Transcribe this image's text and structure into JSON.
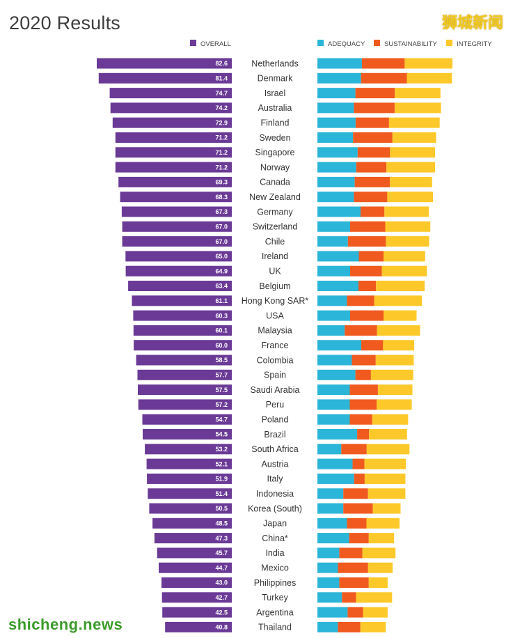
{
  "title": "2020 Results",
  "watermarks": {
    "top": "狮城新闻",
    "bottom": "shicheng.news"
  },
  "legend": {
    "overall": "OVERALL",
    "adequacy": "ADEQUACY",
    "sustainability": "SUSTAINABILITY",
    "integrity": "INTEGRITY"
  },
  "colors": {
    "overall": "#6a3a96",
    "adequacy": "#2bb5d8",
    "sustainability": "#f05a1f",
    "integrity": "#fdc92a"
  },
  "chart_data": {
    "type": "bar",
    "title": "2020 Results",
    "legend_placement": "top",
    "categories": [
      "Netherlands",
      "Denmark",
      "Israel",
      "Australia",
      "Finland",
      "Sweden",
      "Singapore",
      "Norway",
      "Canada",
      "New Zealand",
      "Germany",
      "Switzerland",
      "Chile",
      "Ireland",
      "UK",
      "Belgium",
      "Hong Kong SAR*",
      "USA",
      "Malaysia",
      "France",
      "Colombia",
      "Spain",
      "Saudi Arabia",
      "Peru",
      "Poland",
      "Brazil",
      "South Africa",
      "Austria",
      "Italy",
      "Indonesia",
      "Korea (South)",
      "Japan",
      "China*",
      "India",
      "Mexico",
      "Philippines",
      "Turkey",
      "Argentina",
      "Thailand"
    ],
    "series": [
      {
        "name": "OVERALL",
        "values": [
          82.6,
          81.4,
          74.7,
          74.2,
          72.9,
          71.2,
          71.2,
          71.2,
          69.3,
          68.3,
          67.3,
          67.0,
          67.0,
          65.0,
          64.9,
          63.4,
          61.1,
          60.3,
          60.1,
          60.0,
          58.5,
          57.7,
          57.5,
          57.2,
          54.7,
          54.5,
          53.2,
          52.1,
          51.9,
          51.4,
          50.5,
          48.5,
          47.3,
          45.7,
          44.7,
          43.0,
          42.7,
          42.5,
          40.8
        ]
      },
      {
        "name": "ADEQUACY",
        "values": [
          26.1,
          25.6,
          22.3,
          21.4,
          22.4,
          20.9,
          23.6,
          22.8,
          21.9,
          21.4,
          25.3,
          19.2,
          17.9,
          24.3,
          19.2,
          24.1,
          17.3,
          19.2,
          16.0,
          25.7,
          20.2,
          22.3,
          19.0,
          19.0,
          19.0,
          23.3,
          14.0,
          20.6,
          21.5,
          15.2,
          15.2,
          17.3,
          18.6,
          12.8,
          12.0,
          12.8,
          14.4,
          17.7,
          12.0
        ]
      },
      {
        "name": "SUSTAINABILITY",
        "values": [
          25.1,
          26.9,
          23.1,
          23.9,
          19.6,
          23.1,
          19.0,
          17.7,
          20.6,
          19.6,
          14.0,
          20.6,
          22.3,
          14.5,
          18.6,
          10.3,
          16.0,
          19.6,
          18.9,
          12.8,
          14.0,
          9.1,
          16.5,
          15.7,
          13.2,
          7.0,
          14.9,
          7.0,
          6.2,
          14.5,
          17.3,
          11.5,
          11.5,
          13.6,
          17.7,
          17.3,
          8.3,
          9.1,
          13.2
        ]
      },
      {
        "name": "INTEGRITY",
        "values": [
          28.0,
          26.4,
          26.8,
          27.2,
          29.7,
          25.6,
          26.4,
          28.5,
          24.8,
          26.8,
          26.0,
          26.4,
          25.3,
          24.4,
          26.4,
          28.5,
          28.0,
          19.4,
          25.3,
          18.3,
          22.3,
          24.8,
          20.2,
          20.6,
          21.0,
          22.3,
          25.1,
          24.3,
          23.9,
          21.9,
          16.3,
          19.4,
          14.9,
          19.4,
          14.4,
          11.1,
          21.1,
          14.4,
          14.9
        ]
      }
    ]
  }
}
